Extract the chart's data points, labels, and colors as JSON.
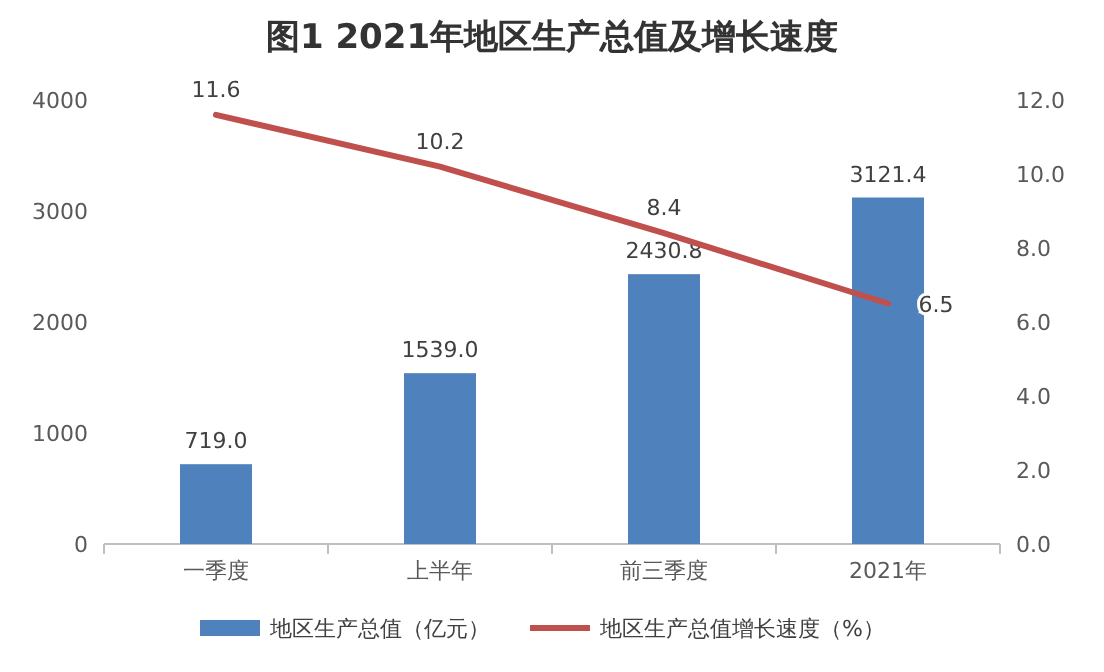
{
  "chart_data": {
    "type": "bar",
    "title": "图1 2021年地区生产总值及增长速度",
    "categories": [
      "一季度",
      "上半年",
      "前三季度",
      "2021年"
    ],
    "series": [
      {
        "name": "地区生产总值（亿元）",
        "color": "#4f81bd",
        "values": [
          719.0,
          1539.0,
          2430.8,
          3121.4
        ],
        "value_labels": [
          "719.0",
          "1539.0",
          "2430.8",
          "3121.4"
        ]
      },
      {
        "name": "地区生产总值增长速度（%）",
        "type": "line",
        "axis": "y2",
        "color": "#c0504d",
        "values": [
          11.6,
          10.2,
          8.4,
          6.5
        ],
        "value_labels": [
          "11.6",
          "10.2",
          "8.4",
          "6.5"
        ]
      }
    ],
    "ylim": [
      0,
      4000
    ],
    "yticks": [
      0,
      1000,
      2000,
      3000,
      4000
    ],
    "y2lim": [
      0,
      12
    ],
    "y2ticks": [
      {
        "value": 0,
        "label": "0.0"
      },
      {
        "value": 2,
        "label": "2.0"
      },
      {
        "value": 4,
        "label": "4.0"
      },
      {
        "value": 6,
        "label": "6.0"
      },
      {
        "value": 8,
        "label": "8.0"
      },
      {
        "value": 10,
        "label": "10.0"
      },
      {
        "value": 12,
        "label": "12.0"
      }
    ],
    "legend": "bottom"
  }
}
